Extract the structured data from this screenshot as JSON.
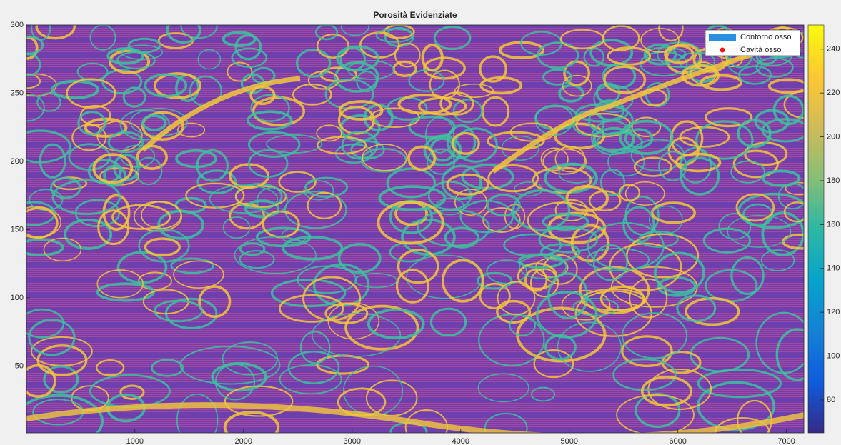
{
  "chart_data": {
    "type": "image",
    "title": "Porosità Evidenziate",
    "xlim": [
      1,
      7160
    ],
    "xticks": [
      1000,
      2000,
      3000,
      4000,
      5000,
      6000,
      7000
    ],
    "ylim": [
      1,
      300
    ],
    "yticks": [
      50,
      100,
      150,
      200,
      250,
      300
    ],
    "series": [
      {
        "name": "Contorno osso",
        "color": "#2a8fe0"
      },
      {
        "name": "Cavità osso",
        "color": "#e8151b"
      }
    ],
    "legend": "upper-right",
    "colorbar": {
      "clim": [
        65,
        251
      ],
      "ticks": [
        80,
        100,
        120,
        140,
        160,
        180,
        200,
        220,
        240
      ],
      "colormap": [
        "#352a87",
        "#0f5cdd",
        "#1481d6",
        "#06a4ca",
        "#2eb7a4",
        "#87bf77",
        "#d1bb59",
        "#fec832",
        "#f9fb0e"
      ]
    }
  }
}
